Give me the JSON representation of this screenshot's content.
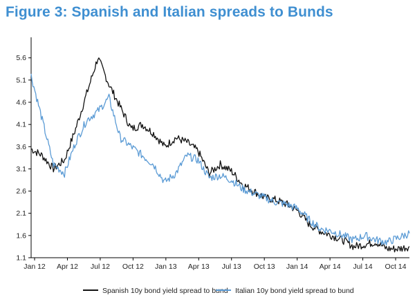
{
  "chart_data": {
    "type": "line",
    "title": "Figure 3: Spanish and Italian spreads to Bunds",
    "xlabel": "",
    "ylabel": "",
    "ylim": [
      1.1,
      6.0
    ],
    "yticks": [
      "1.1",
      "1.6",
      "2.1",
      "2.6",
      "3.1",
      "3.6",
      "4.1",
      "4.6",
      "5.1",
      "5.6"
    ],
    "xticks": [
      "Jan 12",
      "Apr 12",
      "Jul 12",
      "Oct 12",
      "Jan 13",
      "Apr 13",
      "Jul 13",
      "Oct 13",
      "Jan 14",
      "Apr 14",
      "Jul 14",
      "Oct 14"
    ],
    "x": [
      "2012-01",
      "2012-02",
      "2012-03",
      "2012-04",
      "2012-05",
      "2012-06",
      "2012-07",
      "2012-08",
      "2012-09",
      "2012-10",
      "2012-11",
      "2012-12",
      "2013-01",
      "2013-02",
      "2013-03",
      "2013-04",
      "2013-05",
      "2013-06",
      "2013-07",
      "2013-08",
      "2013-09",
      "2013-10",
      "2013-11",
      "2013-12",
      "2014-01",
      "2014-02",
      "2014-03",
      "2014-04",
      "2014-05",
      "2014-06",
      "2014-07",
      "2014-08",
      "2014-09",
      "2014-10",
      "2014-11"
    ],
    "series": [
      {
        "name": "Spanish 10y bond yield spread to bund",
        "color": "#111111",
        "values": [
          3.55,
          3.4,
          3.1,
          3.3,
          4.0,
          4.8,
          5.6,
          5.0,
          4.5,
          4.0,
          4.1,
          3.9,
          3.6,
          3.8,
          3.7,
          3.5,
          3.0,
          3.2,
          3.05,
          2.75,
          2.6,
          2.45,
          2.4,
          2.3,
          2.15,
          1.85,
          1.7,
          1.6,
          1.5,
          1.35,
          1.4,
          1.45,
          1.3,
          1.3,
          1.35
        ]
      },
      {
        "name": "Italian 10y bond yield spread to bund",
        "color": "#5b9bd5",
        "values": [
          5.2,
          4.2,
          3.2,
          3.0,
          3.7,
          4.2,
          4.4,
          4.7,
          3.8,
          3.6,
          3.4,
          3.2,
          2.8,
          3.0,
          3.4,
          3.3,
          2.9,
          2.95,
          2.85,
          2.65,
          2.55,
          2.45,
          2.35,
          2.3,
          2.2,
          1.95,
          1.75,
          1.7,
          1.6,
          1.5,
          1.6,
          1.5,
          1.45,
          1.55,
          1.65
        ]
      }
    ],
    "grid": false,
    "legend": "bottom"
  }
}
